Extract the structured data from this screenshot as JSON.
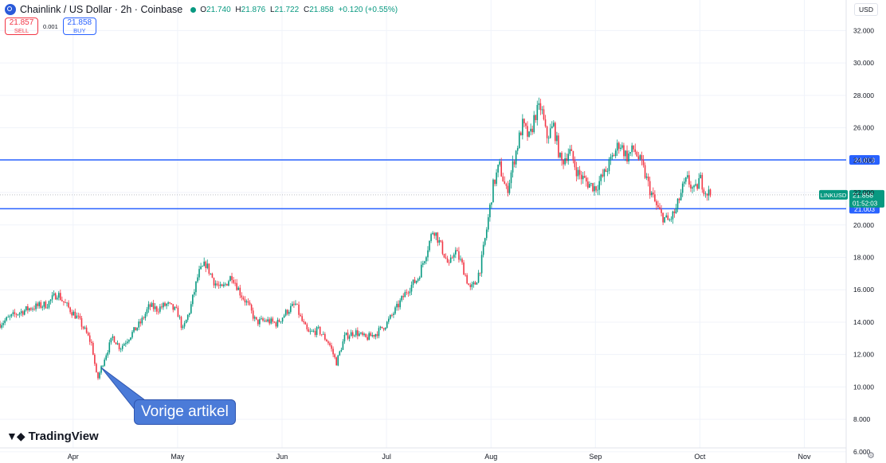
{
  "header": {
    "title": "Chainlink / US Dollar · 2h · Coinbase",
    "o_label": "O",
    "o": "21.740",
    "h_label": "H",
    "h": "21.876",
    "l_label": "L",
    "l": "21.722",
    "c_label": "C",
    "c": "21.858",
    "change": "+0.120 (+0.55%)"
  },
  "trade": {
    "sell_price": "21.857",
    "sell_label": "SELL",
    "spread": "0.001",
    "buy_price": "21.858",
    "buy_label": "BUY"
  },
  "currency": "USD",
  "brand": "TradingView",
  "callout": "Vorige artikel",
  "colors": {
    "up": "#089981",
    "down": "#f23645",
    "level": "#2962ff",
    "callout": "#4b7bd8"
  },
  "chart_data": {
    "type": "candlestick",
    "symbol": "LINKUSD",
    "ylim": [
      6,
      33
    ],
    "yticks": [
      "6.000",
      "8.000",
      "10.000",
      "12.000",
      "14.000",
      "16.000",
      "18.000",
      "20.000",
      "22.000",
      "24.000",
      "26.000",
      "28.000",
      "30.000",
      "32.000"
    ],
    "xticks": [
      {
        "label": "Apr",
        "t": 0.2
      },
      {
        "label": "May",
        "t": 1.2
      },
      {
        "label": "Jun",
        "t": 2.2
      },
      {
        "label": "Jul",
        "t": 3.2
      },
      {
        "label": "Aug",
        "t": 4.2
      },
      {
        "label": "Sep",
        "t": 5.2
      },
      {
        "label": "Oct",
        "t": 6.2
      },
      {
        "label": "Nov",
        "t": 7.2
      }
    ],
    "series": [
      {
        "t": -0.5,
        "v": 13.9
      },
      {
        "t": -0.35,
        "v": 14.5
      },
      {
        "t": -0.2,
        "v": 14.9
      },
      {
        "t": -0.05,
        "v": 15.1
      },
      {
        "t": 0.05,
        "v": 15.8
      },
      {
        "t": 0.1,
        "v": 15.3
      },
      {
        "t": 0.18,
        "v": 14.7
      },
      {
        "t": 0.25,
        "v": 14.2
      },
      {
        "t": 0.32,
        "v": 13.4
      },
      {
        "t": 0.38,
        "v": 12.6
      },
      {
        "t": 0.43,
        "v": 10.4
      },
      {
        "t": 0.5,
        "v": 11.8
      },
      {
        "t": 0.58,
        "v": 13.1
      },
      {
        "t": 0.65,
        "v": 12.4
      },
      {
        "t": 0.75,
        "v": 13.2
      },
      {
        "t": 0.85,
        "v": 14.0
      },
      {
        "t": 0.93,
        "v": 15.0
      },
      {
        "t": 1.0,
        "v": 14.8
      },
      {
        "t": 1.1,
        "v": 15.1
      },
      {
        "t": 1.2,
        "v": 14.6
      },
      {
        "t": 1.25,
        "v": 13.5
      },
      {
        "t": 1.32,
        "v": 14.8
      },
      {
        "t": 1.4,
        "v": 17.0
      },
      {
        "t": 1.47,
        "v": 17.6
      },
      {
        "t": 1.55,
        "v": 16.5
      },
      {
        "t": 1.62,
        "v": 16.0
      },
      {
        "t": 1.72,
        "v": 16.9
      },
      {
        "t": 1.8,
        "v": 15.8
      },
      {
        "t": 1.88,
        "v": 15.0
      },
      {
        "t": 1.95,
        "v": 14.0
      },
      {
        "t": 2.05,
        "v": 14.1
      },
      {
        "t": 2.15,
        "v": 13.9
      },
      {
        "t": 2.25,
        "v": 14.7
      },
      {
        "t": 2.33,
        "v": 15.1
      },
      {
        "t": 2.38,
        "v": 14.2
      },
      {
        "t": 2.45,
        "v": 13.3
      },
      {
        "t": 2.55,
        "v": 13.5
      },
      {
        "t": 2.65,
        "v": 12.7
      },
      {
        "t": 2.72,
        "v": 11.5
      },
      {
        "t": 2.8,
        "v": 13.1
      },
      {
        "t": 2.9,
        "v": 13.4
      },
      {
        "t": 3.0,
        "v": 13.0
      },
      {
        "t": 3.1,
        "v": 13.3
      },
      {
        "t": 3.2,
        "v": 13.9
      },
      {
        "t": 3.3,
        "v": 14.9
      },
      {
        "t": 3.4,
        "v": 16.0
      },
      {
        "t": 3.5,
        "v": 16.7
      },
      {
        "t": 3.58,
        "v": 18.3
      },
      {
        "t": 3.65,
        "v": 19.8
      },
      {
        "t": 3.72,
        "v": 18.7
      },
      {
        "t": 3.8,
        "v": 17.4
      },
      {
        "t": 3.85,
        "v": 18.5
      },
      {
        "t": 3.92,
        "v": 17.6
      },
      {
        "t": 4.0,
        "v": 16.0
      },
      {
        "t": 4.05,
        "v": 16.4
      },
      {
        "t": 4.1,
        "v": 17.4
      },
      {
        "t": 4.16,
        "v": 19.8
      },
      {
        "t": 4.22,
        "v": 22.4
      },
      {
        "t": 4.28,
        "v": 23.7
      },
      {
        "t": 4.35,
        "v": 22.0
      },
      {
        "t": 4.42,
        "v": 24.0
      },
      {
        "t": 4.5,
        "v": 26.2
      },
      {
        "t": 4.57,
        "v": 25.3
      },
      {
        "t": 4.62,
        "v": 26.8
      },
      {
        "t": 4.68,
        "v": 27.3
      },
      {
        "t": 4.73,
        "v": 25.4
      },
      {
        "t": 4.8,
        "v": 26.1
      },
      {
        "t": 4.87,
        "v": 23.8
      },
      {
        "t": 4.95,
        "v": 24.6
      },
      {
        "t": 5.03,
        "v": 23.2
      },
      {
        "t": 5.12,
        "v": 22.6
      },
      {
        "t": 5.2,
        "v": 22.3
      },
      {
        "t": 5.28,
        "v": 23.1
      },
      {
        "t": 5.35,
        "v": 24.0
      },
      {
        "t": 5.43,
        "v": 25.1
      },
      {
        "t": 5.5,
        "v": 24.2
      },
      {
        "t": 5.57,
        "v": 24.7
      },
      {
        "t": 5.65,
        "v": 23.6
      },
      {
        "t": 5.72,
        "v": 22.2
      },
      {
        "t": 5.78,
        "v": 21.2
      },
      {
        "t": 5.83,
        "v": 20.6
      },
      {
        "t": 5.9,
        "v": 20.2
      },
      {
        "t": 5.97,
        "v": 20.9
      },
      {
        "t": 6.03,
        "v": 22.2
      },
      {
        "t": 6.08,
        "v": 22.8
      },
      {
        "t": 6.15,
        "v": 22.0
      },
      {
        "t": 6.2,
        "v": 22.9
      },
      {
        "t": 6.25,
        "v": 22.1
      },
      {
        "t": 6.3,
        "v": 21.9
      }
    ],
    "levels": [
      {
        "name": "24.013",
        "value": 24.013
      },
      {
        "name": "21.003",
        "value": 21.003
      }
    ],
    "last": {
      "price": "21.858",
      "value": 21.858,
      "countdown": "01:52:03"
    }
  }
}
